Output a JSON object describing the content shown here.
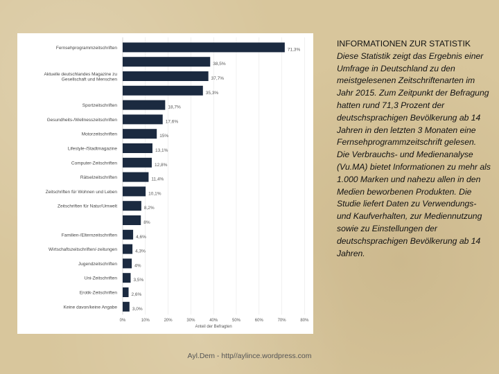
{
  "info": {
    "heading": "INFORMATIONEN ZUR STATISTIK",
    "paragraphs": [
      "Diese Statistik zeigt das Ergebnis einer Umfrage in Deutschland zu den meistgelesenen Zeitschriftenarten im Jahr 2015. Zum Zeitpunkt der Befragung hatten rund 71,3 Prozent der deutschsprachigen Bevölkerung ab 14 Jahren in den letzten 3 Monaten eine Fernsehprogrammzeitschrift gelesen.",
      "Die Verbrauchs- und Medienanalyse (Vu.MA) bietet Informationen zu mehr als 1.000 Marken und nahezu allen in den Medien beworbenen Produkten. Die Studie liefert Daten zu Verwendungs- und Kaufverhalten, zur Mediennutzung sowie zu Einstellungen der deutschsprachigen Bevölkerung ab 14 Jahren."
    ]
  },
  "footer": "Ayl.Dem - http//aylince.wordpress.com",
  "colors": {
    "bar": "#1b2a40"
  },
  "chart_data": {
    "type": "bar",
    "orientation": "horizontal",
    "categories": [
      "Fernsehprogrammzeitschriften",
      "",
      "Aktuelle deutschlandes Magazine zu Gesellschaft und Menschen",
      "",
      "Sportzeitschriften",
      "Gesundheits-/Wellnesszeitschriften",
      "Motorzeitschriften",
      "Lifestyle-/Stadtmagazine",
      "Computer-Zeitschriften",
      "Rätselzeitschriften",
      "Zeitschriften für Wohnen und Leben",
      "Zeitschriften für Natur/Umwelt",
      "",
      "Familien-/Elternzeitschriften",
      "Wirtschaftszeitschriften/-zeitungen",
      "Jugendzeitschriften",
      "Uni-Zeitschriften",
      "Erotik-Zeitschriften",
      "Keine davon/keine Angabe"
    ],
    "values": [
      71.3,
      38.5,
      37.7,
      35.3,
      18.7,
      17.6,
      15,
      13.1,
      12.8,
      11.4,
      10.1,
      8.2,
      8,
      4.6,
      4.3,
      4,
      3.5,
      2.6,
      3
    ],
    "value_labels": [
      "71,3%",
      "38,5%",
      "37,7%",
      "35,3%",
      "18,7%",
      "17,6%",
      "15%",
      "13,1%",
      "12,8%",
      "11,4%",
      "10,1%",
      "8,2%",
      "8%",
      "4,6%",
      "4,3%",
      "4%",
      "3,5%",
      "2,6%",
      "3,0%"
    ],
    "xlabel": "Anteil der Befragten",
    "xlim": [
      0,
      80
    ],
    "xticks": [
      "0%",
      "10%",
      "20%",
      "30%",
      "40%",
      "50%",
      "60%",
      "70%",
      "80%"
    ],
    "grid": true
  }
}
